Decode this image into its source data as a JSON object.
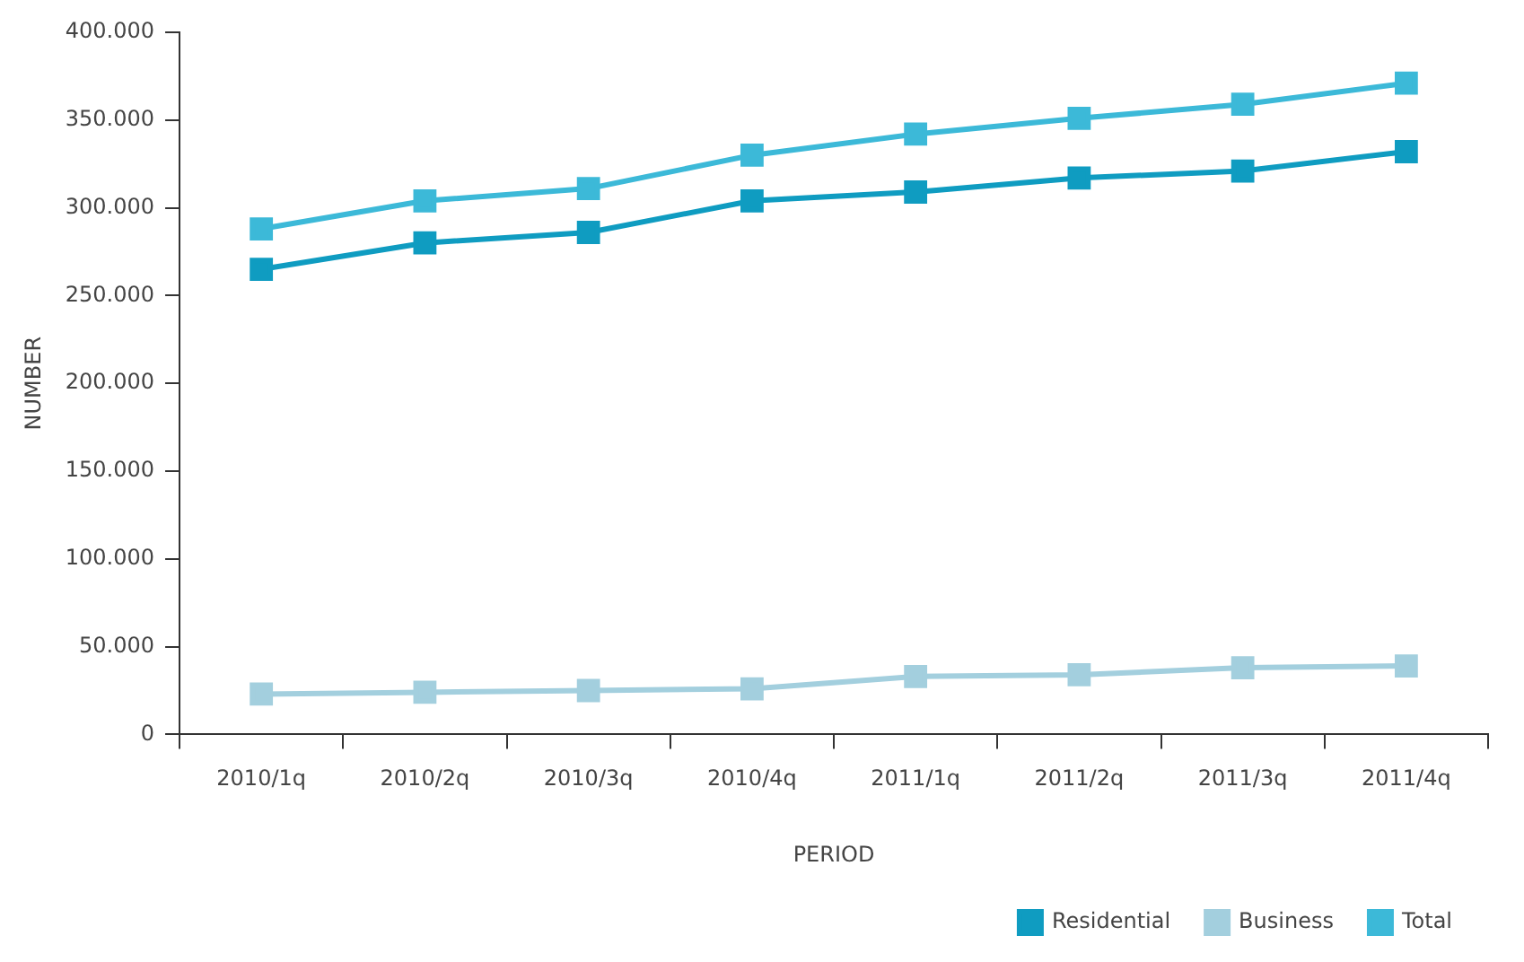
{
  "chart_data": {
    "type": "line",
    "xlabel": "PERIOD",
    "ylabel": "NUMBER",
    "categories": [
      "2010/1q",
      "2010/2q",
      "2010/3q",
      "2010/4q",
      "2011/1q",
      "2011/2q",
      "2011/3q",
      "2011/4q"
    ],
    "series": [
      {
        "name": "Residential",
        "color": "#0f9cc1",
        "values": [
          265000,
          280000,
          286000,
          304000,
          309000,
          317000,
          321000,
          332000
        ]
      },
      {
        "name": "Business",
        "color": "#a3cfde",
        "values": [
          23000,
          24000,
          25000,
          26000,
          33000,
          34000,
          38000,
          39000
        ]
      },
      {
        "name": "Total",
        "color": "#3cb9d8",
        "values": [
          288000,
          304000,
          311000,
          330000,
          342000,
          351000,
          359000,
          371000
        ]
      }
    ],
    "ylim": [
      0,
      400000
    ],
    "yticks": [
      {
        "value": 0,
        "label": "0"
      },
      {
        "value": 50000,
        "label": "50.000"
      },
      {
        "value": 100000,
        "label": "100.000"
      },
      {
        "value": 150000,
        "label": "150.000"
      },
      {
        "value": 200000,
        "label": "200.000"
      },
      {
        "value": 250000,
        "label": "250.000"
      },
      {
        "value": 300000,
        "label": "300.000"
      },
      {
        "value": 350000,
        "label": "350.000"
      },
      {
        "value": 400000,
        "label": "400.000"
      }
    ],
    "grid": false,
    "legend": "bottom right",
    "marker": "square",
    "line_style": "solid"
  }
}
